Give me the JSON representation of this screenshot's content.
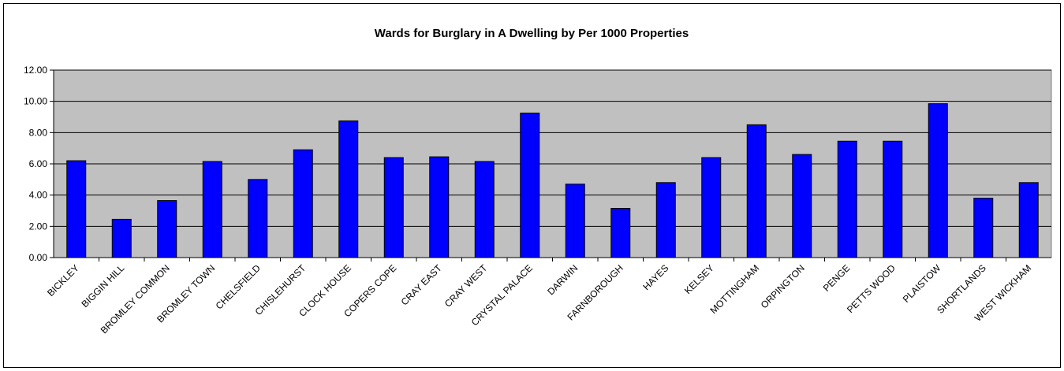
{
  "chart_data": {
    "type": "bar",
    "title": "Wards for Burglary in A Dwelling by Per 1000 Properties",
    "xlabel": "",
    "ylabel": "",
    "categories": [
      "BICKLEY",
      "BIGGIN HILL",
      "BROMLEY COMMON",
      "BROMLEY TOWN",
      "CHELSFIELD",
      "CHISLEHURST",
      "CLOCK HOUSE",
      "COPERS COPE",
      "CRAY EAST",
      "CRAY WEST",
      "CRYSTAL PALACE",
      "DARWIN",
      "FARNBOROUGH",
      "HAYES",
      "KELSEY",
      "MOTTINGHAM",
      "ORPINGTON",
      "PENGE",
      "PETTS WOOD",
      "PLAISTOW",
      "SHORTLANDS",
      "WEST WICKHAM"
    ],
    "values": [
      6.2,
      2.45,
      3.65,
      6.15,
      5.0,
      6.9,
      8.75,
      6.4,
      6.45,
      6.15,
      9.25,
      4.7,
      3.15,
      4.8,
      6.4,
      8.5,
      6.6,
      7.45,
      7.45,
      9.85,
      3.8,
      4.8
    ],
    "ylim": [
      0,
      12
    ],
    "yticks": [
      "0.00",
      "2.00",
      "4.00",
      "6.00",
      "8.00",
      "10.00",
      "12.00"
    ],
    "grid": true,
    "legend": "none",
    "colors": {
      "bar": "#0000ff",
      "plot_bg": "#c0c0c0",
      "gridline": "#000000"
    }
  }
}
